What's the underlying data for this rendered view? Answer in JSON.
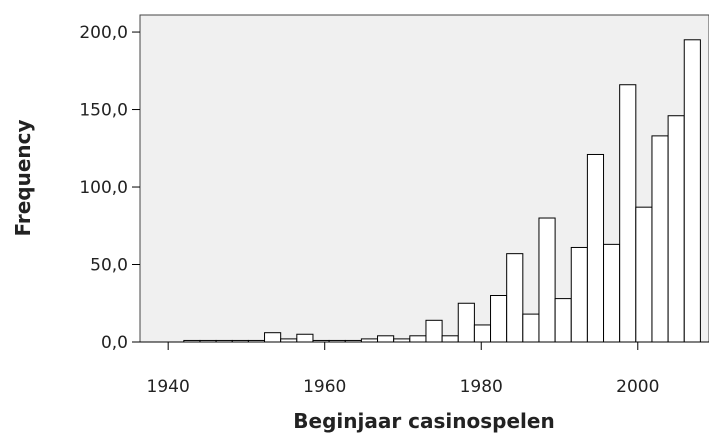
{
  "chart_data": {
    "type": "histogram",
    "xlabel": "Beginjaar casinospelen",
    "ylabel": "Frequency",
    "bins": [
      1942,
      1944.0625,
      1946.125,
      1948.1875,
      1950.25,
      1952.3125,
      1954.375,
      1956.4375,
      1958.5,
      1960.5625,
      1962.625,
      1964.6875,
      1966.75,
      1968.8125,
      1970.875,
      1972.9375,
      1975,
      1977.0625,
      1979.125,
      1981.1875,
      1983.25,
      1985.3125,
      1987.375,
      1989.4375,
      1991.5,
      1993.5625,
      1995.625,
      1997.6875,
      1999.75,
      2001.8125,
      2003.875,
      2005.9375,
      2008
    ],
    "values": [
      1,
      1,
      1,
      1,
      1,
      6,
      2,
      5,
      1,
      1,
      1,
      2,
      4,
      2,
      4,
      14,
      4,
      25,
      11,
      30,
      57,
      18,
      80,
      28,
      61,
      121,
      63,
      166,
      87,
      133,
      146,
      195
    ],
    "color": "#ffffff",
    "background": "#f0f0f0",
    "xlim": [
      1936.4,
      2009.1
    ],
    "xticks": [
      1940,
      1960,
      1980,
      2000
    ],
    "ylim": [
      0,
      211
    ],
    "yticks": [
      {
        "value": 0,
        "label": "0,0"
      },
      {
        "value": 50,
        "label": "50,0"
      },
      {
        "value": 100,
        "label": "100,0"
      },
      {
        "value": 150,
        "label": "150,0"
      },
      {
        "value": 200,
        "label": "200,0"
      }
    ]
  }
}
